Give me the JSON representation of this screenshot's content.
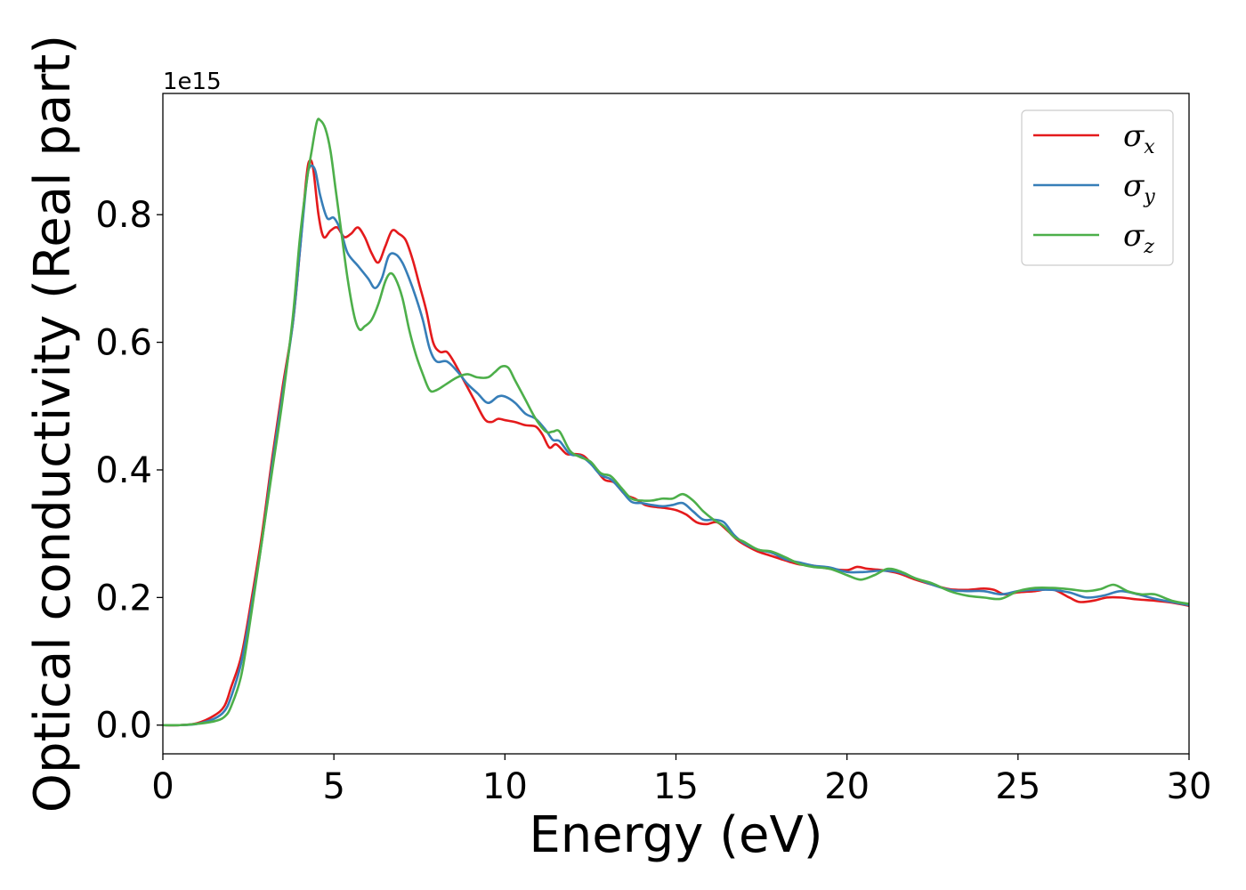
{
  "chart_data": {
    "type": "line",
    "xlabel": "Energy (eV)",
    "ylabel": "Optical conductivity (Real part)",
    "y_offset_label": "1e15",
    "xlim": [
      0,
      30
    ],
    "ylim": [
      -0.045,
      0.99
    ],
    "xticks": [
      0,
      5,
      10,
      15,
      20,
      25,
      30
    ],
    "xtick_labels": [
      "0",
      "5",
      "10",
      "15",
      "20",
      "25",
      "30"
    ],
    "yticks": [
      0.0,
      0.2,
      0.4,
      0.6,
      0.8
    ],
    "ytick_labels": [
      "0.0",
      "0.2",
      "0.4",
      "0.6",
      "0.8"
    ],
    "grid": false,
    "legend_position": "top-right",
    "series": [
      {
        "name": "σx",
        "legend_base": "σ",
        "legend_sub": "x",
        "color": "#e41a1c",
        "points": [
          [
            0,
            0.0
          ],
          [
            0.5,
            0.0
          ],
          [
            1.0,
            0.003
          ],
          [
            1.5,
            0.015
          ],
          [
            1.8,
            0.03
          ],
          [
            2.0,
            0.06
          ],
          [
            2.3,
            0.11
          ],
          [
            2.6,
            0.2
          ],
          [
            2.9,
            0.3
          ],
          [
            3.2,
            0.42
          ],
          [
            3.5,
            0.53
          ],
          [
            3.8,
            0.63
          ],
          [
            4.0,
            0.74
          ],
          [
            4.2,
            0.86
          ],
          [
            4.3,
            0.885
          ],
          [
            4.4,
            0.87
          ],
          [
            4.55,
            0.8
          ],
          [
            4.7,
            0.765
          ],
          [
            4.9,
            0.775
          ],
          [
            5.1,
            0.78
          ],
          [
            5.3,
            0.765
          ],
          [
            5.5,
            0.77
          ],
          [
            5.7,
            0.78
          ],
          [
            5.9,
            0.765
          ],
          [
            6.1,
            0.74
          ],
          [
            6.3,
            0.725
          ],
          [
            6.5,
            0.75
          ],
          [
            6.7,
            0.775
          ],
          [
            6.9,
            0.77
          ],
          [
            7.1,
            0.76
          ],
          [
            7.3,
            0.73
          ],
          [
            7.5,
            0.69
          ],
          [
            7.7,
            0.65
          ],
          [
            7.9,
            0.6
          ],
          [
            8.1,
            0.585
          ],
          [
            8.3,
            0.585
          ],
          [
            8.5,
            0.57
          ],
          [
            8.8,
            0.54
          ],
          [
            9.1,
            0.51
          ],
          [
            9.4,
            0.48
          ],
          [
            9.6,
            0.475
          ],
          [
            9.8,
            0.48
          ],
          [
            10.0,
            0.478
          ],
          [
            10.3,
            0.475
          ],
          [
            10.6,
            0.47
          ],
          [
            10.9,
            0.468
          ],
          [
            11.1,
            0.455
          ],
          [
            11.3,
            0.435
          ],
          [
            11.5,
            0.44
          ],
          [
            11.8,
            0.425
          ],
          [
            12.0,
            0.425
          ],
          [
            12.3,
            0.422
          ],
          [
            12.6,
            0.405
          ],
          [
            12.9,
            0.385
          ],
          [
            13.2,
            0.38
          ],
          [
            13.5,
            0.362
          ],
          [
            13.8,
            0.355
          ],
          [
            14.1,
            0.345
          ],
          [
            14.4,
            0.342
          ],
          [
            14.7,
            0.34
          ],
          [
            15.0,
            0.337
          ],
          [
            15.3,
            0.33
          ],
          [
            15.6,
            0.318
          ],
          [
            15.9,
            0.315
          ],
          [
            16.2,
            0.318
          ],
          [
            16.5,
            0.305
          ],
          [
            16.8,
            0.29
          ],
          [
            17.1,
            0.28
          ],
          [
            17.4,
            0.272
          ],
          [
            17.8,
            0.265
          ],
          [
            18.2,
            0.258
          ],
          [
            18.6,
            0.252
          ],
          [
            19.0,
            0.25
          ],
          [
            19.5,
            0.245
          ],
          [
            20.0,
            0.243
          ],
          [
            20.3,
            0.248
          ],
          [
            20.6,
            0.245
          ],
          [
            21.0,
            0.243
          ],
          [
            21.5,
            0.238
          ],
          [
            22.0,
            0.228
          ],
          [
            22.5,
            0.22
          ],
          [
            23.0,
            0.213
          ],
          [
            23.5,
            0.212
          ],
          [
            24.0,
            0.214
          ],
          [
            24.3,
            0.212
          ],
          [
            24.6,
            0.205
          ],
          [
            25.0,
            0.208
          ],
          [
            25.5,
            0.21
          ],
          [
            26.0,
            0.213
          ],
          [
            26.5,
            0.2
          ],
          [
            26.8,
            0.193
          ],
          [
            27.2,
            0.195
          ],
          [
            27.6,
            0.2
          ],
          [
            28.0,
            0.2
          ],
          [
            28.5,
            0.197
          ],
          [
            29.0,
            0.195
          ],
          [
            29.5,
            0.192
          ],
          [
            30.0,
            0.187
          ]
        ]
      },
      {
        "name": "σy",
        "legend_base": "σ",
        "legend_sub": "y",
        "color": "#377eb8",
        "points": [
          [
            0,
            0.0
          ],
          [
            0.5,
            0.0
          ],
          [
            1.0,
            0.002
          ],
          [
            1.5,
            0.01
          ],
          [
            1.8,
            0.022
          ],
          [
            2.0,
            0.045
          ],
          [
            2.3,
            0.1
          ],
          [
            2.6,
            0.19
          ],
          [
            2.9,
            0.29
          ],
          [
            3.2,
            0.41
          ],
          [
            3.5,
            0.52
          ],
          [
            3.8,
            0.63
          ],
          [
            4.0,
            0.74
          ],
          [
            4.2,
            0.85
          ],
          [
            4.3,
            0.875
          ],
          [
            4.45,
            0.87
          ],
          [
            4.6,
            0.83
          ],
          [
            4.8,
            0.795
          ],
          [
            5.0,
            0.795
          ],
          [
            5.2,
            0.775
          ],
          [
            5.4,
            0.74
          ],
          [
            5.7,
            0.72
          ],
          [
            6.0,
            0.7
          ],
          [
            6.2,
            0.685
          ],
          [
            6.4,
            0.7
          ],
          [
            6.6,
            0.735
          ],
          [
            6.8,
            0.738
          ],
          [
            7.0,
            0.725
          ],
          [
            7.2,
            0.7
          ],
          [
            7.4,
            0.67
          ],
          [
            7.6,
            0.635
          ],
          [
            7.8,
            0.59
          ],
          [
            8.0,
            0.57
          ],
          [
            8.3,
            0.57
          ],
          [
            8.6,
            0.555
          ],
          [
            8.9,
            0.535
          ],
          [
            9.2,
            0.52
          ],
          [
            9.5,
            0.505
          ],
          [
            9.8,
            0.515
          ],
          [
            10.0,
            0.515
          ],
          [
            10.3,
            0.505
          ],
          [
            10.6,
            0.488
          ],
          [
            10.9,
            0.48
          ],
          [
            11.2,
            0.462
          ],
          [
            11.4,
            0.447
          ],
          [
            11.6,
            0.445
          ],
          [
            11.9,
            0.425
          ],
          [
            12.2,
            0.422
          ],
          [
            12.5,
            0.41
          ],
          [
            12.8,
            0.392
          ],
          [
            13.1,
            0.385
          ],
          [
            13.4,
            0.368
          ],
          [
            13.7,
            0.35
          ],
          [
            14.0,
            0.348
          ],
          [
            14.3,
            0.345
          ],
          [
            14.6,
            0.343
          ],
          [
            14.9,
            0.345
          ],
          [
            15.2,
            0.348
          ],
          [
            15.5,
            0.335
          ],
          [
            15.8,
            0.322
          ],
          [
            16.1,
            0.322
          ],
          [
            16.4,
            0.318
          ],
          [
            16.7,
            0.298
          ],
          [
            17.0,
            0.285
          ],
          [
            17.4,
            0.275
          ],
          [
            17.8,
            0.27
          ],
          [
            18.2,
            0.26
          ],
          [
            18.6,
            0.255
          ],
          [
            19.0,
            0.25
          ],
          [
            19.5,
            0.247
          ],
          [
            20.0,
            0.24
          ],
          [
            20.5,
            0.24
          ],
          [
            21.0,
            0.242
          ],
          [
            21.5,
            0.24
          ],
          [
            22.0,
            0.23
          ],
          [
            22.5,
            0.22
          ],
          [
            23.0,
            0.212
          ],
          [
            23.5,
            0.21
          ],
          [
            24.0,
            0.21
          ],
          [
            24.5,
            0.205
          ],
          [
            25.0,
            0.21
          ],
          [
            25.5,
            0.212
          ],
          [
            26.0,
            0.212
          ],
          [
            26.5,
            0.208
          ],
          [
            27.0,
            0.2
          ],
          [
            27.5,
            0.203
          ],
          [
            28.0,
            0.21
          ],
          [
            28.5,
            0.205
          ],
          [
            29.0,
            0.198
          ],
          [
            29.5,
            0.193
          ],
          [
            30.0,
            0.188
          ]
        ]
      },
      {
        "name": "σz",
        "legend_base": "σ",
        "legend_sub": "z",
        "color": "#4daf4a",
        "points": [
          [
            0,
            0.0
          ],
          [
            0.5,
            0.0
          ],
          [
            1.0,
            0.002
          ],
          [
            1.5,
            0.006
          ],
          [
            1.8,
            0.013
          ],
          [
            2.0,
            0.03
          ],
          [
            2.3,
            0.08
          ],
          [
            2.6,
            0.18
          ],
          [
            2.9,
            0.29
          ],
          [
            3.2,
            0.4
          ],
          [
            3.5,
            0.51
          ],
          [
            3.8,
            0.64
          ],
          [
            4.0,
            0.76
          ],
          [
            4.2,
            0.85
          ],
          [
            4.35,
            0.9
          ],
          [
            4.5,
            0.945
          ],
          [
            4.6,
            0.948
          ],
          [
            4.75,
            0.935
          ],
          [
            4.9,
            0.9
          ],
          [
            5.05,
            0.84
          ],
          [
            5.2,
            0.78
          ],
          [
            5.4,
            0.7
          ],
          [
            5.6,
            0.64
          ],
          [
            5.75,
            0.62
          ],
          [
            5.9,
            0.625
          ],
          [
            6.1,
            0.635
          ],
          [
            6.3,
            0.66
          ],
          [
            6.5,
            0.695
          ],
          [
            6.65,
            0.708
          ],
          [
            6.8,
            0.7
          ],
          [
            7.0,
            0.67
          ],
          [
            7.2,
            0.62
          ],
          [
            7.4,
            0.58
          ],
          [
            7.6,
            0.55
          ],
          [
            7.8,
            0.525
          ],
          [
            8.0,
            0.525
          ],
          [
            8.3,
            0.535
          ],
          [
            8.6,
            0.545
          ],
          [
            8.9,
            0.55
          ],
          [
            9.2,
            0.545
          ],
          [
            9.5,
            0.545
          ],
          [
            9.7,
            0.553
          ],
          [
            9.9,
            0.562
          ],
          [
            10.1,
            0.56
          ],
          [
            10.3,
            0.54
          ],
          [
            10.6,
            0.51
          ],
          [
            10.9,
            0.48
          ],
          [
            11.2,
            0.46
          ],
          [
            11.4,
            0.46
          ],
          [
            11.6,
            0.46
          ],
          [
            11.9,
            0.43
          ],
          [
            12.2,
            0.42
          ],
          [
            12.5,
            0.413
          ],
          [
            12.8,
            0.395
          ],
          [
            13.1,
            0.39
          ],
          [
            13.4,
            0.372
          ],
          [
            13.7,
            0.355
          ],
          [
            14.0,
            0.352
          ],
          [
            14.3,
            0.352
          ],
          [
            14.6,
            0.355
          ],
          [
            14.9,
            0.355
          ],
          [
            15.2,
            0.362
          ],
          [
            15.5,
            0.352
          ],
          [
            15.8,
            0.335
          ],
          [
            16.1,
            0.322
          ],
          [
            16.4,
            0.312
          ],
          [
            16.7,
            0.295
          ],
          [
            17.0,
            0.287
          ],
          [
            17.4,
            0.275
          ],
          [
            17.8,
            0.272
          ],
          [
            18.2,
            0.263
          ],
          [
            18.6,
            0.253
          ],
          [
            19.0,
            0.248
          ],
          [
            19.5,
            0.245
          ],
          [
            20.0,
            0.235
          ],
          [
            20.4,
            0.228
          ],
          [
            20.8,
            0.235
          ],
          [
            21.2,
            0.245
          ],
          [
            21.6,
            0.24
          ],
          [
            22.0,
            0.23
          ],
          [
            22.5,
            0.222
          ],
          [
            23.0,
            0.21
          ],
          [
            23.5,
            0.203
          ],
          [
            24.0,
            0.2
          ],
          [
            24.5,
            0.198
          ],
          [
            25.0,
            0.21
          ],
          [
            25.5,
            0.215
          ],
          [
            26.0,
            0.215
          ],
          [
            26.5,
            0.213
          ],
          [
            27.0,
            0.21
          ],
          [
            27.4,
            0.213
          ],
          [
            27.8,
            0.22
          ],
          [
            28.2,
            0.21
          ],
          [
            28.6,
            0.205
          ],
          [
            29.0,
            0.205
          ],
          [
            29.5,
            0.195
          ],
          [
            30.0,
            0.19
          ]
        ]
      }
    ]
  }
}
